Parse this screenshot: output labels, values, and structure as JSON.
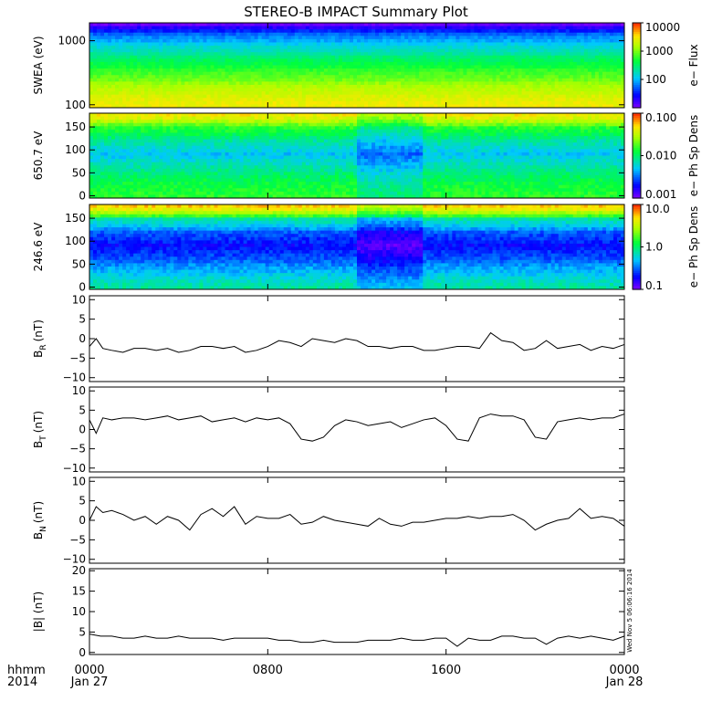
{
  "title": "STEREO-B IMPACT Summary Plot",
  "stamp": "Wed Nov 5 06:06:16 2014",
  "time_axis": {
    "row1_label": "hhmm",
    "row2_label": "2014",
    "ticks": [
      {
        "hours": 0,
        "label": "0000",
        "date": "Jan 27"
      },
      {
        "hours": 8,
        "label": "0800",
        "date": ""
      },
      {
        "hours": 16,
        "label": "1600",
        "date": ""
      },
      {
        "hours": 24,
        "label": "0000",
        "date": "Jan 28"
      }
    ]
  },
  "chart_data": [
    {
      "type": "heatmap",
      "panel": "swea",
      "ylabel": "SWEA (eV)",
      "yscale": "log",
      "ylim": [
        90,
        1900
      ],
      "yticks": [
        {
          "v": 100,
          "label": "100"
        },
        {
          "v": 1000,
          "label": "1000"
        }
      ],
      "colorbar": {
        "label": "e− Flux",
        "scale": "log",
        "range": [
          10,
          10000
        ],
        "ticks": [
          {
            "v": 100,
            "label": "100"
          },
          {
            "v": 1000,
            "label": "1000"
          },
          {
            "v": 10000,
            "label": "10000"
          }
        ]
      },
      "energy_levels_eV": [
        100,
        150,
        250,
        400,
        650,
        1000,
        1500,
        1800
      ],
      "flux_by_energy": [
        3000,
        2000,
        900,
        450,
        200,
        90,
        25,
        12
      ]
    },
    {
      "type": "heatmap",
      "panel": "pad_650",
      "ylabel": "650.7 eV",
      "ylim": [
        -5,
        180
      ],
      "yticks": [
        {
          "v": 0,
          "label": "0"
        },
        {
          "v": 50,
          "label": "50"
        },
        {
          "v": 100,
          "label": "100"
        },
        {
          "v": 150,
          "label": "150"
        }
      ],
      "colorbar": {
        "label": "e− Ph Sp Dens",
        "scale": "log",
        "range": [
          0.001,
          0.1
        ],
        "ticks": [
          {
            "v": 0.001,
            "label": "0.001"
          },
          {
            "v": 0.01,
            "label": "0.010"
          },
          {
            "v": 0.1,
            "label": "0.100"
          }
        ]
      },
      "pitch_angles_deg": [
        0,
        30,
        60,
        90,
        120,
        150,
        180
      ],
      "density_profile": [
        0.015,
        0.012,
        0.008,
        0.005,
        0.008,
        0.015,
        0.05
      ]
    },
    {
      "type": "heatmap",
      "panel": "pad_246",
      "ylabel": "246.6 eV",
      "ylim": [
        -5,
        180
      ],
      "yticks": [
        {
          "v": 0,
          "label": "0"
        },
        {
          "v": 50,
          "label": "50"
        },
        {
          "v": 100,
          "label": "100"
        },
        {
          "v": 150,
          "label": "150"
        }
      ],
      "colorbar": {
        "label": "e− Ph Sp Dens",
        "scale": "log",
        "range": [
          0.1,
          10
        ],
        "ticks": [
          {
            "v": 0.1,
            "label": "0.1"
          },
          {
            "v": 1,
            "label": "1.0"
          },
          {
            "v": 10,
            "label": "10.0"
          }
        ]
      },
      "pitch_angles_deg": [
        0,
        30,
        60,
        90,
        120,
        150,
        180
      ],
      "density_profile": [
        0.8,
        0.5,
        0.3,
        0.2,
        0.3,
        0.8,
        6
      ]
    },
    {
      "type": "line",
      "panel": "br",
      "ylabel": "B",
      "ylabel_sub": "R",
      "ylabel_unit": "(nT)",
      "ylim": [
        -11,
        11
      ],
      "yticks": [
        {
          "v": -10,
          "label": "−10"
        },
        {
          "v": -5,
          "label": "−5"
        },
        {
          "v": 0,
          "label": "0"
        },
        {
          "v": 5,
          "label": "5"
        },
        {
          "v": 10,
          "label": "10"
        }
      ],
      "x": [
        0,
        0.3,
        0.6,
        1,
        1.5,
        2,
        2.5,
        3,
        3.5,
        4,
        4.5,
        5,
        5.5,
        6,
        6.5,
        7,
        7.5,
        8,
        8.5,
        9,
        9.5,
        10,
        10.5,
        11,
        11.5,
        12,
        12.5,
        13,
        13.5,
        14,
        14.5,
        15,
        15.5,
        16,
        16.5,
        17,
        17.5,
        18,
        18.5,
        19,
        19.5,
        20,
        20.5,
        21,
        21.5,
        22,
        22.5,
        23,
        23.5,
        24
      ],
      "y": [
        -2,
        0,
        -2.5,
        -3,
        -3.5,
        -2.5,
        -2.5,
        -3,
        -2.5,
        -3.5,
        -3,
        -2,
        -2,
        -2.5,
        -2,
        -3.5,
        -3,
        -2,
        -0.5,
        -1,
        -2,
        0,
        -0.5,
        -1,
        0,
        -0.5,
        -2,
        -2,
        -2.5,
        -2,
        -2,
        -3,
        -3,
        -2.5,
        -2,
        -2,
        -2.5,
        1.5,
        -0.5,
        -1,
        -3,
        -2.5,
        -0.5,
        -2.5,
        -2,
        -1.5,
        -3,
        -2,
        -2.5,
        -1.5
      ]
    },
    {
      "type": "line",
      "panel": "bt",
      "ylabel": "B",
      "ylabel_sub": "T",
      "ylabel_unit": "(nT)",
      "ylim": [
        -11,
        11
      ],
      "yticks": [
        {
          "v": -10,
          "label": "−10"
        },
        {
          "v": -5,
          "label": "−5"
        },
        {
          "v": 0,
          "label": "0"
        },
        {
          "v": 5,
          "label": "5"
        },
        {
          "v": 10,
          "label": "10"
        }
      ],
      "x": [
        0,
        0.3,
        0.6,
        1,
        1.5,
        2,
        2.5,
        3,
        3.5,
        4,
        4.5,
        5,
        5.5,
        6,
        6.5,
        7,
        7.5,
        8,
        8.5,
        9,
        9.5,
        10,
        10.5,
        11,
        11.5,
        12,
        12.5,
        13,
        13.5,
        14,
        14.5,
        15,
        15.5,
        16,
        16.5,
        17,
        17.5,
        18,
        18.5,
        19,
        19.5,
        20,
        20.5,
        21,
        21.5,
        22,
        22.5,
        23,
        23.5,
        24
      ],
      "y": [
        2.5,
        -1,
        3,
        2.5,
        3,
        3,
        2.5,
        3,
        3.5,
        2.5,
        3,
        3.5,
        2,
        2.5,
        3,
        2,
        3,
        2.5,
        3,
        1.5,
        -2.5,
        -3,
        -2,
        1,
        2.5,
        2,
        1,
        1.5,
        2,
        0.5,
        1.5,
        2.5,
        3,
        1,
        -2.5,
        -3,
        3,
        4,
        3.5,
        3.5,
        2.5,
        -2,
        -2.5,
        2,
        2.5,
        3,
        2.5,
        3,
        3,
        4
      ]
    },
    {
      "type": "line",
      "panel": "bn",
      "ylabel": "B",
      "ylabel_sub": "N",
      "ylabel_unit": "(nT)",
      "ylim": [
        -11,
        11
      ],
      "yticks": [
        {
          "v": -10,
          "label": "−10"
        },
        {
          "v": -5,
          "label": "−5"
        },
        {
          "v": 0,
          "label": "0"
        },
        {
          "v": 5,
          "label": "5"
        },
        {
          "v": 10,
          "label": "10"
        }
      ],
      "x": [
        0,
        0.3,
        0.6,
        1,
        1.5,
        2,
        2.5,
        3,
        3.5,
        4,
        4.5,
        5,
        5.5,
        6,
        6.5,
        7,
        7.5,
        8,
        8.5,
        9,
        9.5,
        10,
        10.5,
        11,
        11.5,
        12,
        12.5,
        13,
        13.5,
        14,
        14.5,
        15,
        15.5,
        16,
        16.5,
        17,
        17.5,
        18,
        18.5,
        19,
        19.5,
        20,
        20.5,
        21,
        21.5,
        22,
        22.5,
        23,
        23.5,
        24
      ],
      "y": [
        0,
        3.5,
        2,
        2.5,
        1.5,
        0,
        1,
        -1,
        1,
        0,
        -2.5,
        1.5,
        3,
        1,
        3.5,
        -1,
        1,
        0.5,
        0.5,
        1.5,
        -1,
        -0.5,
        1,
        0,
        -0.5,
        -1,
        -1.5,
        0.5,
        -1,
        -1.5,
        -0.5,
        -0.5,
        0,
        0.5,
        0.5,
        1,
        0.5,
        1,
        1,
        1.5,
        0,
        -2.5,
        -1,
        0,
        0.5,
        3,
        0.5,
        1,
        0.5,
        -1.5
      ]
    },
    {
      "type": "line",
      "panel": "bmag",
      "ylabel": "|B| (nT)",
      "ylim": [
        -0.5,
        20.5
      ],
      "yticks": [
        {
          "v": 0,
          "label": "0"
        },
        {
          "v": 5,
          "label": "5"
        },
        {
          "v": 10,
          "label": "10"
        },
        {
          "v": 15,
          "label": "15"
        },
        {
          "v": 20,
          "label": "20"
        }
      ],
      "x": [
        0,
        0.5,
        1,
        1.5,
        2,
        2.5,
        3,
        3.5,
        4,
        4.5,
        5,
        5.5,
        6,
        6.5,
        7,
        7.5,
        8,
        8.5,
        9,
        9.5,
        10,
        10.5,
        11,
        11.5,
        12,
        12.5,
        13,
        13.5,
        14,
        14.5,
        15,
        15.5,
        16,
        16.5,
        17,
        17.5,
        18,
        18.5,
        19,
        19.5,
        20,
        20.5,
        21,
        21.5,
        22,
        22.5,
        23,
        23.5,
        24
      ],
      "y": [
        4.5,
        4,
        4,
        3.5,
        3.5,
        4,
        3.5,
        3.5,
        4,
        3.5,
        3.5,
        3.5,
        3,
        3.5,
        3.5,
        3.5,
        3.5,
        3,
        3,
        2.5,
        2.5,
        3,
        2.5,
        2.5,
        2.5,
        3,
        3,
        3,
        3.5,
        3,
        3,
        3.5,
        3.5,
        1.5,
        3.5,
        3,
        3,
        4,
        4,
        3.5,
        3.5,
        2,
        3.5,
        4,
        3.5,
        4,
        3.5,
        3,
        4
      ]
    }
  ]
}
